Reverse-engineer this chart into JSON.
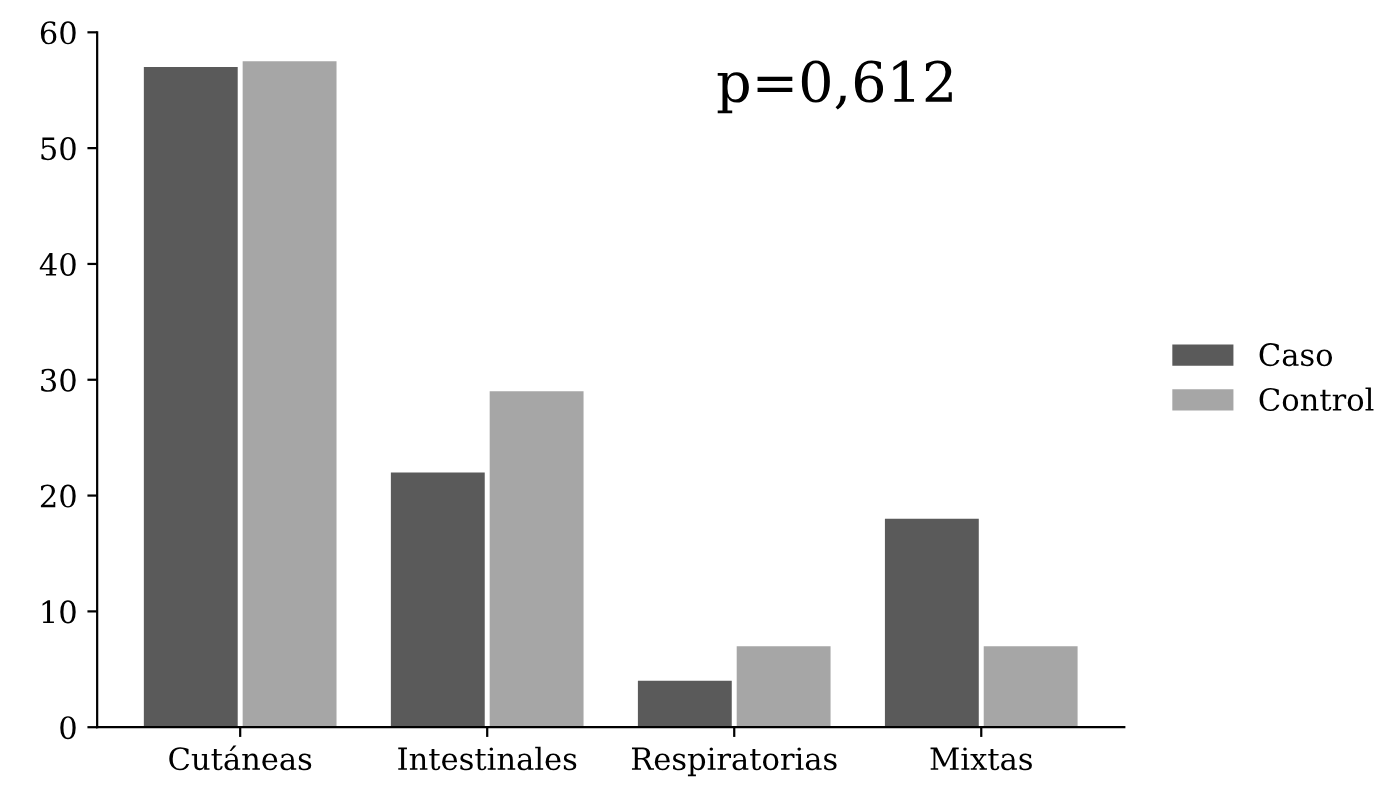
{
  "chart_data": {
    "type": "bar",
    "categories": [
      "Cutáneas",
      "Intestinales",
      "Respiratorias",
      "Mixtas"
    ],
    "series": [
      {
        "name": "Caso",
        "color": "#5a5a5a",
        "values": [
          57,
          22,
          4,
          18
        ]
      },
      {
        "name": "Control",
        "color": "#a6a6a6",
        "values": [
          57.5,
          29,
          7,
          7
        ]
      }
    ],
    "ylim": [
      0,
      60
    ],
    "yticks": [
      0,
      10,
      20,
      30,
      40,
      50,
      60
    ],
    "grid": false,
    "legend": "right",
    "annotations": [
      "p=0,612"
    ]
  }
}
